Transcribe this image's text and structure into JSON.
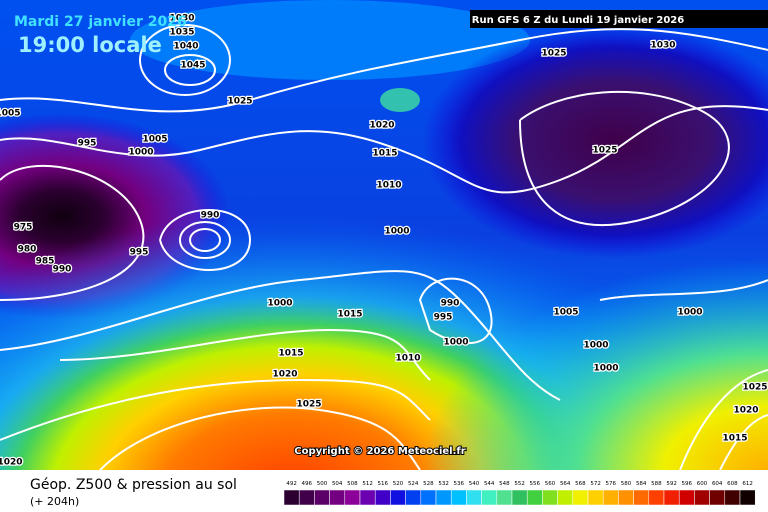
{
  "header": {
    "date": "Mardi 27 janvier 2026",
    "time": "19:00 locale",
    "run": "Run GFS 6 Z du Lundi 19 janvier 2026"
  },
  "map": {
    "copyright": "Copyright © 2026 Meteociel.fr",
    "isobar_labels": [
      "1030",
      "1035",
      "1040",
      "1045",
      "1025",
      "1005",
      "995",
      "1005",
      "1000",
      "1020",
      "1015",
      "1010",
      "1025",
      "1030",
      "1025",
      "975",
      "980",
      "985",
      "990",
      "995",
      "990",
      "1000",
      "1000",
      "1015",
      "990",
      "995",
      "1000",
      "1005",
      "1000",
      "1000",
      "1000",
      "1010",
      "1015",
      "1020",
      "1025",
      "1025",
      "1020",
      "1015",
      "1020"
    ]
  },
  "footer": {
    "title": "Géop. Z500 & pression au sol",
    "lead": "(+ 204h)"
  },
  "legend": {
    "levels": [
      492,
      496,
      500,
      504,
      508,
      512,
      516,
      520,
      524,
      528,
      532,
      536,
      540,
      544,
      548,
      552,
      556,
      560,
      564,
      568,
      572,
      576,
      580,
      584,
      588,
      592,
      596,
      600,
      604,
      608,
      612
    ],
    "colors": [
      "#2b0030",
      "#40004a",
      "#5a0066",
      "#730080",
      "#8c0099",
      "#6a00b0",
      "#4000c8",
      "#1010e0",
      "#0040f0",
      "#0070ff",
      "#0098ff",
      "#00c0ff",
      "#30e0f0",
      "#40f0c0",
      "#50e090",
      "#30c060",
      "#40d040",
      "#80e020",
      "#c0f000",
      "#f0f000",
      "#ffd000",
      "#ffb000",
      "#ff9000",
      "#ff6a00",
      "#ff4000",
      "#f02000",
      "#d00000",
      "#a00000",
      "#700000",
      "#400000",
      "#100000"
    ]
  }
}
